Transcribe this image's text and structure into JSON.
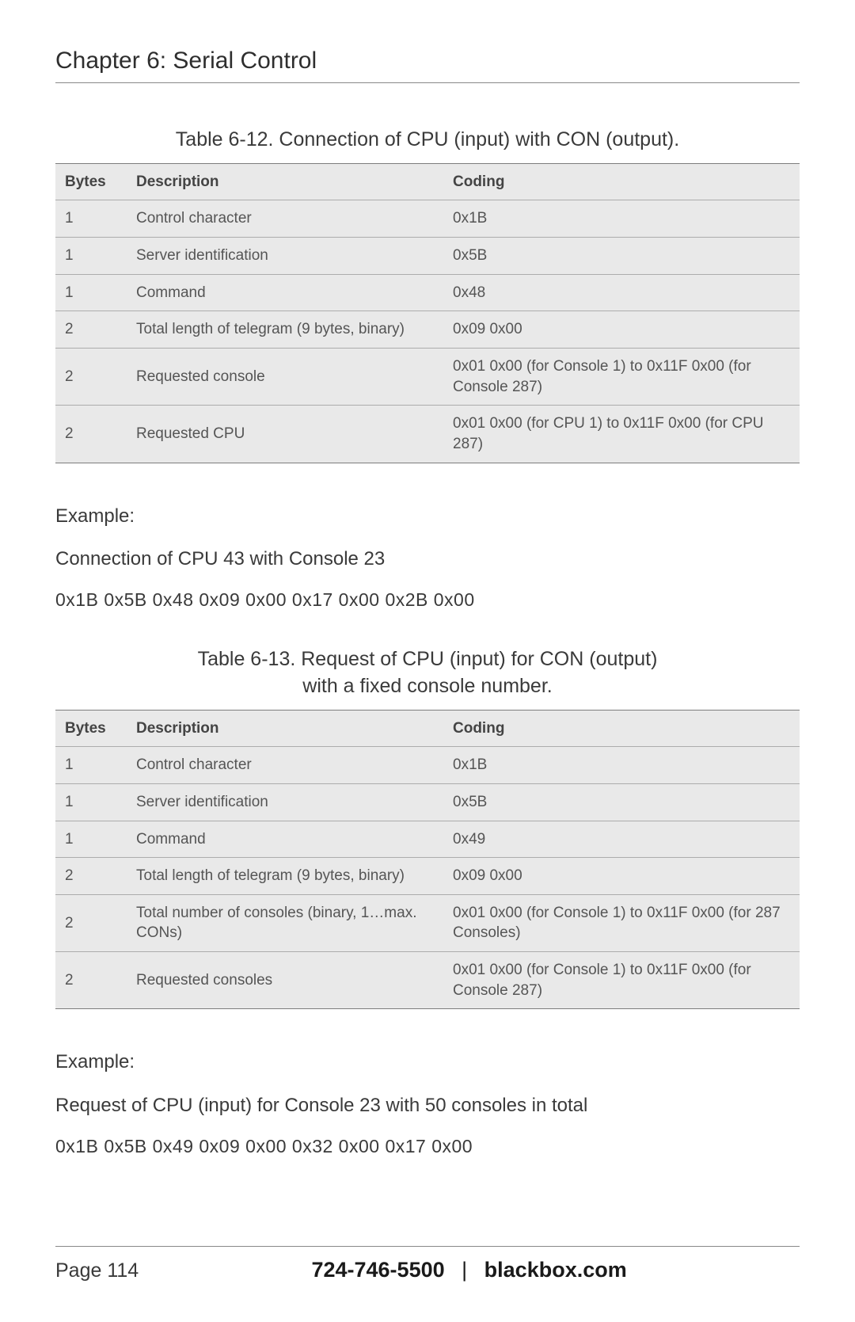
{
  "chapter_title": "Chapter 6: Serial Control",
  "table1": {
    "caption": "Table 6-12. Connection of CPU (input) with CON (output).",
    "columns": [
      "Bytes",
      "Description",
      "Coding"
    ],
    "rows": [
      [
        "1",
        "Control character",
        "0x1B"
      ],
      [
        "1",
        "Server identification",
        "0x5B"
      ],
      [
        "1",
        "Command",
        "0x48"
      ],
      [
        "2",
        "Total length of telegram (9 bytes, binary)",
        "0x09 0x00"
      ],
      [
        "2",
        "Requested console",
        "0x01 0x00 (for Console 1) to 0x11F 0x00 (for Console 287)"
      ],
      [
        "2",
        "Requested CPU",
        "0x01 0x00 (for CPU 1) to 0x11F 0x00 (for CPU 287)"
      ]
    ]
  },
  "example1": {
    "heading": "Example:",
    "line1": "Connection of CPU 43 with Console 23",
    "hex": "0x1B 0x5B 0x48 0x09 0x00 0x17 0x00 0x2B 0x00"
  },
  "table2": {
    "caption_line1": "Table 6-13. Request of CPU (input) for CON (output)",
    "caption_line2": "with a fixed console number.",
    "columns": [
      "Bytes",
      "Description",
      "Coding"
    ],
    "rows": [
      [
        "1",
        "Control character",
        "0x1B"
      ],
      [
        "1",
        "Server identification",
        "0x5B"
      ],
      [
        "1",
        "Command",
        "0x49"
      ],
      [
        "2",
        "Total length of telegram (9 bytes, binary)",
        "0x09 0x00"
      ],
      [
        "2",
        "Total number of consoles (binary, 1…max. CONs)",
        "0x01 0x00 (for Console 1) to 0x11F 0x00 (for 287 Consoles)"
      ],
      [
        "2",
        "Requested consoles",
        "0x01 0x00 (for Console 1) to 0x11F 0x00 (for Console 287)"
      ]
    ]
  },
  "example2": {
    "heading": "Example:",
    "line1": "Request of CPU (input) for Console 23 with 50 consoles in total",
    "hex": "0x1B 0x5B 0x49 0x09 0x00 0x32 0x00 0x17 0x00"
  },
  "footer": {
    "page": "Page 114",
    "phone": "724-746-5500",
    "sep": "|",
    "site": "blackbox.com"
  },
  "style": {
    "header_bg": "#e9e9e9",
    "row_bg": "#e9e9e9",
    "rule_color": "#7d7d7d",
    "inner_rule": "#acacac",
    "text_color": "#3a3a3a"
  }
}
